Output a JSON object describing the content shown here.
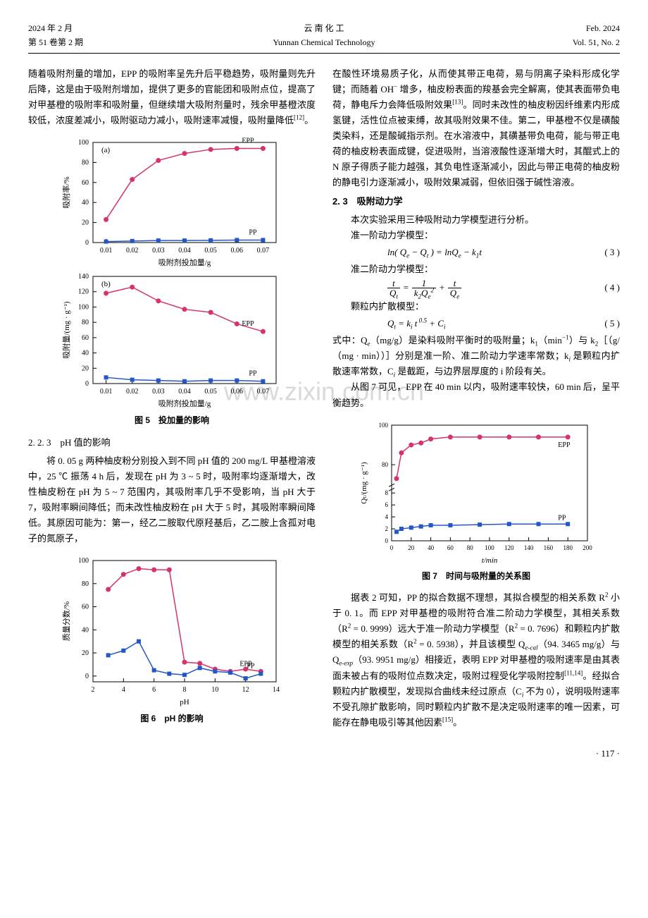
{
  "header": {
    "left1": "2024 年 2 月",
    "left2": "第 51 卷第 2 期",
    "center1": "云 南 化 工",
    "center2": "Yunnan Chemical Technology",
    "right1": "Feb. 2024",
    "right2": "Vol. 51, No. 2"
  },
  "watermark": "www.zixin.com.cn",
  "left_col": {
    "p1": "随着吸附剂量的增加，EPP 的吸附率呈先升后平稳趋势，吸附量则先升后降，这是由于吸附剂增加，提供了更多的官能团和吸附点位，提高了对甲基橙的吸附率和吸附量，但继续增大吸附剂量时，残余甲基橙浓度较低，浓度差减小，吸附驱动力减小，吸附速率减慢，吸附量降低",
    "p1_ref": "[12]",
    "p1_tail": "。",
    "fig5_caption": "图 5　投加量的影响",
    "sec223": "2. 2. 3　pH 值的影响",
    "p2": "将 0. 05 g 两种柚皮粉分别投入到不同 pH 值的 200 mg/L 甲基橙溶液中，25 ℃ 振荡 4 h 后，发现在 pH 为 3 ~ 5 时，吸附率均逐渐增大，改性柚皮粉在 pH 为 5 ~ 7 范围内，其吸附率几乎不受影响，当 pH 大于 7，吸附率瞬间降低；而未改性柚皮粉在 pH 大于 5 时，其吸附率瞬间降低。其原因可能为：第一，经乙二胺取代原羟基后，乙二胺上含孤对电子的氮原子，",
    "fig6_caption": "图 6　pH 的影响"
  },
  "right_col": {
    "p3a": "在酸性环境易质子化，从而使其带正电荷，易与阴离子染料形成化学键；而随着 OH",
    "p3sup": "−",
    "p3b": " 增多，柚皮粉表面的羧基会完全解离，使其表面带负电荷，静电斥力会降低吸附效果",
    "p3_ref": "[13]",
    "p3c": "。同时未改性的柚皮粉因纤维素内形成氢键，活性位点被束缚，故其吸附效果不佳。第二，甲基橙不仅是磺酸类染料，还是酸碱指示剂。在水溶液中，其磺基带负电荷，能与带正电荷的柚皮粉表面成键，促进吸附，当溶液酸性逐渐增大时，其醌式上的 N 原子得质子能力越强，其负电性逐渐减小，因此与带正电荷的柚皮粉的静电引力逐渐减小，吸附效果减弱，但依旧强于碱性溶液。",
    "sec23": "2. 3　吸附动力学",
    "p4": "本次实验采用三种吸附动力学模型进行分析。",
    "m1_label": "准一阶动力学模型：",
    "eq3": "ln( Q<sub>e</sub> − Q<sub>t</sub> ) = lnQ<sub>e</sub> − k<sub>1</sub>t",
    "eq3_num": "( 3 )",
    "m2_label": "准二阶动力学模型：",
    "eq4_num": "( 4 )",
    "m3_label": "颗粒内扩散模型：",
    "eq5": "Q<sub>t</sub> = k<sub>i</sub> t<sup> 0.5</sup> + C<sub>i</sub>",
    "eq5_num": "( 5 )",
    "p5a": "式中：Q",
    "p5b": "（mg/g）是染料吸附平衡时的吸附量；k",
    "p5c": "（min",
    "p5d": "）与 k",
    "p5e": "［（g/（mg · min））］分别是准一阶、准二阶动力学速率常数；k",
    "p5f": " 是颗粒内扩散速率常数，C",
    "p5g": " 是截距，与边界层厚度的 i 阶段有关。",
    "p6": "从图 7 可见，EPP 在 40 min 以内，吸附速率较快，60 min 后，呈平衡趋势。",
    "fig7_caption": "图 7　时间与吸附量的关系图",
    "p7a": "据表 2 可知，PP 的拟合数据不理想，其拟合模型的相关系数 R",
    "p7b": " 小于 0. 1。而 EPP 对甲基橙的吸附符合准二阶动力学模型，其相关系数（R",
    "p7c": " = 0. 9999）远大于准一阶动力学模型（R",
    "p7d": " = 0. 7696）和颗粒内扩散模型的相关系数（R",
    "p7e": " = 0. 5938），并且该模型 Q",
    "p7f": "（94. 3465 mg/g）与 Q",
    "p7g": "（93. 9951 mg/g）相接近，表明 EPP 对甲基橙的吸附速率是由其表面未被占有的吸附位点数决定，吸附过程受化学吸附控制",
    "p7_ref1": "[11,14]",
    "p7h": "。经拟合颗粒内扩散模型，发现拟合曲线未经过原点（C",
    "p7i": " 不为 0），说明吸附速率不受孔隙扩散影响，同时颗粒内扩散不是决定吸附速率的唯一因素，可能存在静电吸引等其他因素",
    "p7_ref2": "[15]",
    "p7j": "。"
  },
  "page_num": "· 117 ·",
  "fig5a": {
    "xLabel": "吸附剂投加量/g",
    "yLabel": "吸附率/%",
    "panel": "(a)",
    "eppLabel": "EPP",
    "ppLabel": "PP",
    "xTicks": [
      0.01,
      0.02,
      0.03,
      0.04,
      0.05,
      0.06,
      0.07
    ],
    "yTicks": [
      0,
      20,
      40,
      60,
      80,
      100
    ],
    "epp": {
      "x": [
        0.01,
        0.02,
        0.03,
        0.04,
        0.05,
        0.06,
        0.07
      ],
      "y": [
        23,
        63,
        82,
        89,
        93,
        94,
        94
      ]
    },
    "pp": {
      "x": [
        0.01,
        0.02,
        0.03,
        0.04,
        0.05,
        0.06,
        0.07
      ],
      "y": [
        1,
        1.5,
        2,
        2,
        2.2,
        2.5,
        2.5
      ]
    },
    "eppColor": "#d6336c",
    "ppColor": "#2457c5",
    "xlim": [
      0.005,
      0.075
    ],
    "ylim": [
      0,
      100
    ]
  },
  "fig5b": {
    "xLabel": "吸附剂投加量/g",
    "yLabel": "吸附量/(mg · g⁻¹)",
    "panel": "(b)",
    "eppLabel": "EPP",
    "ppLabel": "PP",
    "xTicks": [
      0.01,
      0.02,
      0.03,
      0.04,
      0.05,
      0.06,
      0.07
    ],
    "yTicks": [
      0,
      20,
      40,
      60,
      80,
      100,
      120,
      140
    ],
    "epp": {
      "x": [
        0.01,
        0.02,
        0.03,
        0.04,
        0.05,
        0.06,
        0.07
      ],
      "y": [
        118,
        126,
        108,
        97,
        93,
        78,
        68
      ]
    },
    "pp": {
      "x": [
        0.01,
        0.02,
        0.03,
        0.04,
        0.05,
        0.06,
        0.07
      ],
      "y": [
        8,
        5,
        4,
        3,
        4,
        4,
        3
      ]
    },
    "eppColor": "#d6336c",
    "ppColor": "#2457c5",
    "xlim": [
      0.005,
      0.075
    ],
    "ylim": [
      0,
      140
    ]
  },
  "fig6": {
    "xLabel": "pH",
    "yLabel": "质量分数/%",
    "eppLabel": "EPP",
    "ppLabel": "PP",
    "xTicks": [
      2,
      4,
      6,
      8,
      10,
      12,
      14
    ],
    "yTicks": [
      0,
      20,
      40,
      60,
      80,
      100
    ],
    "epp": {
      "x": [
        3,
        4,
        5,
        6,
        7,
        8,
        9,
        10,
        11,
        12,
        13
      ],
      "y": [
        75,
        88,
        93,
        92,
        92,
        12,
        11,
        6,
        4,
        6,
        4
      ]
    },
    "pp": {
      "x": [
        3,
        4,
        5,
        6,
        7,
        8,
        9,
        10,
        11,
        12,
        13
      ],
      "y": [
        18,
        22,
        30,
        5,
        2,
        1,
        7,
        4,
        3,
        -2,
        2
      ]
    },
    "eppColor": "#d6336c",
    "ppColor": "#2457c5",
    "xlim": [
      2,
      14
    ],
    "ylim": [
      -5,
      100
    ]
  },
  "fig7": {
    "xLabel": "t/min",
    "yLabel": "Qₜ/(mg · g⁻¹)",
    "eppLabel": "EPP",
    "ppLabel": "PP",
    "xTicks": [
      0,
      20,
      40,
      60,
      80,
      100,
      120,
      140,
      160,
      180,
      200
    ],
    "yTicks_low": [
      0,
      2,
      4,
      6,
      8
    ],
    "yTicks_high": [
      80,
      100
    ],
    "epp": {
      "x": [
        5,
        10,
        20,
        30,
        40,
        60,
        90,
        120,
        150,
        180
      ],
      "y": [
        73,
        86,
        90,
        91,
        93,
        94,
        94,
        94,
        94,
        94
      ]
    },
    "pp": {
      "x": [
        5,
        10,
        20,
        30,
        40,
        60,
        90,
        120,
        150,
        180
      ],
      "y": [
        1.5,
        2,
        2.2,
        2.4,
        2.6,
        2.6,
        2.7,
        2.8,
        2.8,
        2.8
      ]
    },
    "eppColor": "#d6336c",
    "ppColor": "#2457c5",
    "xlim": [
      0,
      200
    ]
  }
}
